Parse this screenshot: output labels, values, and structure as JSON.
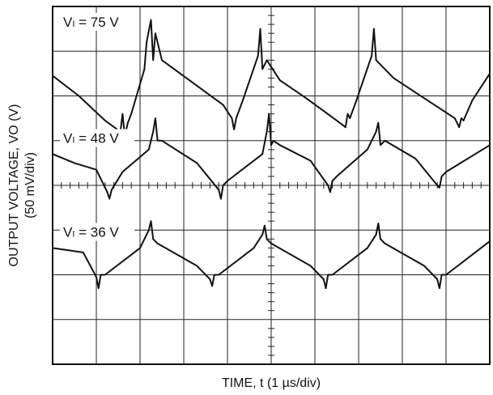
{
  "chart_data": {
    "type": "line",
    "title": "",
    "xlabel": "TIME, t (1 µs/div)",
    "ylabel_line1": "OUTPUT VOLTAGE, VO (V)",
    "ylabel_line2": "(50 mV/div)",
    "x_unit": "div",
    "y_unit": "div",
    "xlim": [
      0,
      10
    ],
    "ylim": [
      0,
      8
    ],
    "grid": true,
    "series": [
      {
        "name": "VI = 75 V",
        "label_main": "V",
        "label_sub": "I",
        "label_rest": " = 75 V",
        "x": [
          0,
          0.6,
          1.2,
          1.55,
          1.6,
          1.65,
          1.72,
          1.8,
          2.1,
          2.15,
          2.25,
          2.3,
          2.35,
          2.5,
          3.2,
          3.9,
          4.1,
          4.15,
          4.2,
          4.35,
          4.7,
          4.75,
          4.8,
          4.9,
          5.2,
          5.8,
          6.5,
          6.7,
          6.75,
          6.8,
          6.95,
          7.3,
          7.35,
          7.4,
          7.5,
          7.8,
          8.5,
          9.2,
          9.3,
          9.35,
          9.4,
          9.6,
          10
        ],
        "y": [
          6.45,
          6.0,
          5.45,
          5.2,
          5.6,
          5.1,
          5.4,
          5.6,
          6.6,
          7.2,
          7.7,
          6.8,
          7.4,
          6.8,
          6.3,
          5.8,
          5.5,
          5.25,
          5.5,
          5.9,
          6.9,
          7.5,
          6.6,
          6.8,
          6.35,
          5.95,
          5.45,
          5.3,
          5.6,
          5.5,
          5.9,
          6.9,
          7.5,
          6.8,
          6.7,
          6.4,
          5.95,
          5.5,
          5.3,
          5.5,
          5.45,
          5.9,
          6.5
        ]
      },
      {
        "name": "VI = 48 V",
        "label_main": "V",
        "label_sub": "I",
        "label_rest": " = 48 V",
        "x": [
          0,
          0.5,
          1.0,
          1.25,
          1.3,
          1.35,
          1.6,
          2.2,
          2.3,
          2.35,
          2.4,
          2.5,
          3.3,
          3.8,
          3.85,
          3.9,
          4.0,
          4.8,
          4.9,
          4.95,
          5.0,
          5.05,
          5.2,
          5.9,
          6.3,
          6.35,
          6.4,
          6.5,
          7.2,
          7.4,
          7.45,
          7.5,
          7.6,
          8.3,
          8.8,
          8.85,
          8.9,
          9.0,
          10
        ],
        "y": [
          4.7,
          4.5,
          4.35,
          3.85,
          3.7,
          3.9,
          4.3,
          4.8,
          5.2,
          5.5,
          5.0,
          5.0,
          4.5,
          3.9,
          3.7,
          4.0,
          4.1,
          4.7,
          5.2,
          5.6,
          4.9,
          5.0,
          4.9,
          4.55,
          4.0,
          3.85,
          4.1,
          4.2,
          4.8,
          5.2,
          5.4,
          4.9,
          5.0,
          4.6,
          4.0,
          3.95,
          4.2,
          4.3,
          4.9
        ]
      },
      {
        "name": "VI = 36 V",
        "label_main": "V",
        "label_sub": "I",
        "label_rest": " = 36 V",
        "x": [
          0,
          0.7,
          1.0,
          1.05,
          1.1,
          1.2,
          2.0,
          2.2,
          2.25,
          2.3,
          2.4,
          3.3,
          3.6,
          3.65,
          3.7,
          3.8,
          4.6,
          4.8,
          4.85,
          4.9,
          5.0,
          5.9,
          6.2,
          6.25,
          6.3,
          6.4,
          7.2,
          7.4,
          7.45,
          7.5,
          7.6,
          8.5,
          8.8,
          8.85,
          8.9,
          9.0,
          10
        ],
        "y": [
          2.6,
          2.5,
          1.95,
          1.7,
          2.0,
          2.0,
          2.6,
          3.0,
          3.2,
          2.8,
          2.7,
          2.2,
          1.9,
          1.75,
          2.0,
          2.0,
          2.6,
          2.9,
          3.1,
          2.8,
          2.7,
          2.2,
          1.9,
          1.7,
          2.0,
          2.0,
          2.6,
          2.9,
          3.15,
          2.8,
          2.7,
          2.2,
          1.9,
          1.7,
          2.0,
          2.0,
          2.75
        ]
      }
    ]
  }
}
